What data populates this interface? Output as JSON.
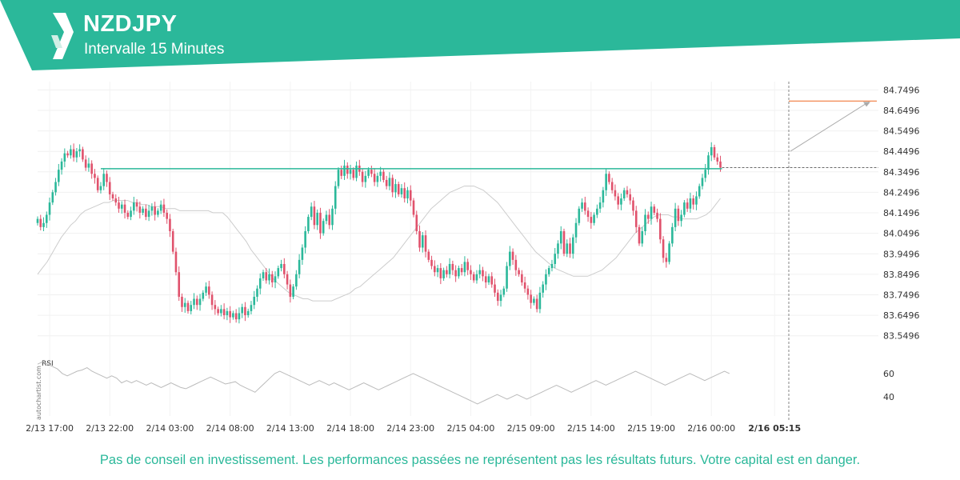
{
  "header": {
    "title": "NZDJPY",
    "subtitle": "Intervalle 15 Minutes",
    "colors": {
      "band": "#2bb89a",
      "logo_light": "#ffffff",
      "logo_shade": "#d0efe6"
    }
  },
  "footer": {
    "disclaimer": "Pas de conseil en investissement. Les performances passées ne représentent pas les résultats futurs. Votre capital est en danger.",
    "watermark": "autochartist.com"
  },
  "chart_data": {
    "type": "candlestick",
    "title": "NZDJPY",
    "interval": "15 Minutes",
    "y_ticks": [
      "84.7496",
      "84.6496",
      "84.5496",
      "84.4496",
      "84.3496",
      "84.2496",
      "84.1496",
      "84.0496",
      "83.9496",
      "83.8496",
      "83.7496",
      "83.6496",
      "83.5496"
    ],
    "ylim": [
      83.49,
      84.79
    ],
    "x_ticks": [
      "2/13 17:00",
      "2/13 22:00",
      "2/14 03:00",
      "2/14 08:00",
      "2/14 13:00",
      "2/14 18:00",
      "2/14 23:00",
      "2/15 04:00",
      "2/15 09:00",
      "2/15 14:00",
      "2/15 19:00",
      "2/16 00:00",
      "2/16 05:15"
    ],
    "x_tick_index": [
      4,
      24,
      44,
      64,
      84,
      104,
      124,
      144,
      164,
      184,
      204,
      224,
      245
    ],
    "highlight_x": "2/16 05:15",
    "closes": [
      84.12,
      84.08,
      84.1,
      84.14,
      84.2,
      84.25,
      84.3,
      84.36,
      84.4,
      84.44,
      84.43,
      84.46,
      84.42,
      84.45,
      84.46,
      84.41,
      84.37,
      84.39,
      84.34,
      84.32,
      84.26,
      84.28,
      84.34,
      84.3,
      84.24,
      84.22,
      84.2,
      84.17,
      84.19,
      84.15,
      84.13,
      84.16,
      84.2,
      84.18,
      84.15,
      84.17,
      84.13,
      84.16,
      84.18,
      84.14,
      84.16,
      84.19,
      84.15,
      84.12,
      84.06,
      83.96,
      83.86,
      83.74,
      83.69,
      83.71,
      83.67,
      83.7,
      83.73,
      83.7,
      83.73,
      83.76,
      83.79,
      83.75,
      83.7,
      83.68,
      83.66,
      83.68,
      83.65,
      83.67,
      83.64,
      83.66,
      83.63,
      83.66,
      83.69,
      83.65,
      83.67,
      83.7,
      83.74,
      83.78,
      83.83,
      83.86,
      83.82,
      83.85,
      83.81,
      83.84,
      83.88,
      83.9,
      83.85,
      83.8,
      83.74,
      83.79,
      83.85,
      83.92,
      83.98,
      84.06,
      84.13,
      84.18,
      84.09,
      84.15,
      84.05,
      84.11,
      84.14,
      84.09,
      84.17,
      84.28,
      84.36,
      84.33,
      84.38,
      84.34,
      84.36,
      84.32,
      84.38,
      84.35,
      84.3,
      84.33,
      84.36,
      84.34,
      84.3,
      84.33,
      84.35,
      84.31,
      84.28,
      84.32,
      84.25,
      84.29,
      84.24,
      84.27,
      84.22,
      84.26,
      84.21,
      84.14,
      84.06,
      83.98,
      84.04,
      83.96,
      83.92,
      83.89,
      83.86,
      83.88,
      83.83,
      83.87,
      83.85,
      83.9,
      83.87,
      83.84,
      83.88,
      83.86,
      83.91,
      83.87,
      83.85,
      83.82,
      83.85,
      83.87,
      83.84,
      83.81,
      83.84,
      83.8,
      83.76,
      83.72,
      83.75,
      83.78,
      83.89,
      83.96,
      83.92,
      83.87,
      83.85,
      83.81,
      83.78,
      83.75,
      83.71,
      83.73,
      83.68,
      83.76,
      83.8,
      83.85,
      83.88,
      83.9,
      83.95,
      84.0,
      84.06,
      83.95,
      84.0,
      83.95,
      84.03,
      84.1,
      84.17,
      84.2,
      84.16,
      84.13,
      84.1,
      84.14,
      84.17,
      84.2,
      84.26,
      84.34,
      84.3,
      84.26,
      84.23,
      84.19,
      84.22,
      84.26,
      84.24,
      84.21,
      84.16,
      84.08,
      84.0,
      84.06,
      84.14,
      84.12,
      84.18,
      84.15,
      84.12,
      84.02,
      83.93,
      83.91,
      84.0,
      84.08,
      84.17,
      84.11,
      84.14,
      84.2,
      84.17,
      84.22,
      84.19,
      84.23,
      84.28,
      84.32,
      84.36,
      84.43,
      84.47,
      84.42,
      84.4,
      84.37
    ],
    "ma": [
      83.85,
      83.88,
      83.91,
      83.95,
      83.99,
      84.03,
      84.06,
      84.09,
      84.11,
      84.14,
      84.16,
      84.17,
      84.18,
      84.19,
      84.2,
      84.2,
      84.21,
      84.21,
      84.21,
      84.21,
      84.2,
      84.2,
      84.19,
      84.19,
      84.18,
      84.18,
      84.18,
      84.17,
      84.17,
      84.17,
      84.16,
      84.16,
      84.16,
      84.16,
      84.16,
      84.16,
      84.16,
      84.15,
      84.15,
      84.15,
      84.13,
      84.1,
      84.07,
      84.04,
      84.01,
      83.97,
      83.94,
      83.91,
      83.88,
      83.85,
      83.82,
      83.8,
      83.78,
      83.76,
      83.75,
      83.74,
      83.73,
      83.73,
      83.72,
      83.72,
      83.72,
      83.72,
      83.72,
      83.73,
      83.74,
      83.75,
      83.76,
      83.78,
      83.79,
      83.81,
      83.83,
      83.85,
      83.87,
      83.89,
      83.91,
      83.93,
      83.96,
      83.99,
      84.02,
      84.05,
      84.08,
      84.11,
      84.14,
      84.17,
      84.19,
      84.21,
      84.23,
      84.25,
      84.26,
      84.27,
      84.28,
      84.28,
      84.28,
      84.27,
      84.26,
      84.24,
      84.22,
      84.2,
      84.17,
      84.14,
      84.11,
      84.08,
      84.05,
      84.02,
      83.99,
      83.96,
      83.94,
      83.92,
      83.9,
      83.88,
      83.87,
      83.86,
      83.85,
      83.84,
      83.84,
      83.84,
      83.84,
      83.85,
      83.86,
      83.87,
      83.89,
      83.91,
      83.93,
      83.96,
      83.99,
      84.02,
      84.05,
      84.07,
      84.09,
      84.11,
      84.13,
      84.14,
      84.14,
      84.14,
      84.13,
      84.13,
      84.12,
      84.12,
      84.12,
      84.12,
      84.13,
      84.14,
      84.16,
      84.19,
      84.22
    ],
    "ma_start_index": 0,
    "moving_average_note": "",
    "resistance_level": 84.365,
    "target_level": 84.695,
    "current_price": 84.37,
    "rsi": {
      "label": "RSI",
      "ticks": [
        60,
        40
      ],
      "ylim": [
        25,
        75
      ],
      "values": [
        68,
        70,
        68,
        66,
        64,
        60,
        58,
        60,
        62,
        63,
        65,
        62,
        60,
        58,
        56,
        58,
        56,
        52,
        54,
        52,
        54,
        52,
        50,
        52,
        50,
        48,
        50,
        52,
        50,
        48,
        47,
        49,
        51,
        53,
        55,
        57,
        55,
        53,
        51,
        52,
        53,
        50,
        48,
        46,
        44,
        48,
        52,
        56,
        60,
        62,
        60,
        58,
        56,
        54,
        52,
        50,
        52,
        54,
        52,
        50,
        52,
        50,
        48,
        46,
        48,
        50,
        52,
        50,
        48,
        46,
        48,
        50,
        52,
        54,
        56,
        58,
        60,
        58,
        56,
        54,
        52,
        50,
        48,
        46,
        44,
        42,
        40,
        38,
        36,
        34,
        36,
        38,
        40,
        42,
        40,
        38,
        40,
        42,
        40,
        38,
        40,
        42,
        44,
        46,
        48,
        50,
        48,
        46,
        44,
        46,
        48,
        50,
        52,
        54,
        52,
        50,
        52,
        54,
        56,
        58,
        60,
        62,
        60,
        58,
        56,
        54,
        52,
        50,
        52,
        54,
        56,
        58,
        60,
        58,
        56,
        54,
        56,
        58,
        60,
        62,
        60
      ]
    }
  }
}
